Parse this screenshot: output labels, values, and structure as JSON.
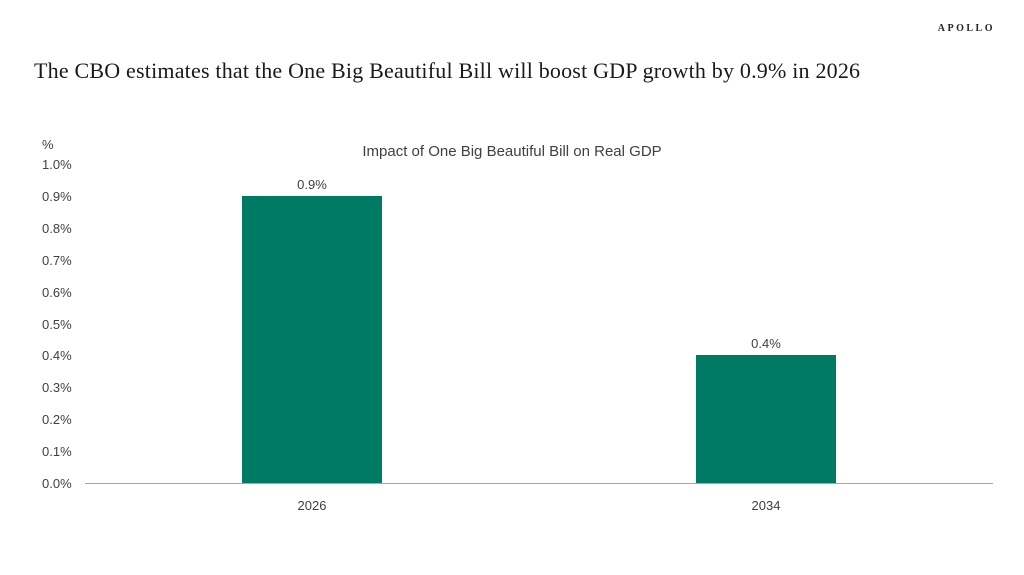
{
  "brand": {
    "logo_text": "APOLLO"
  },
  "headline": "The CBO estimates that the One Big Beautiful Bill will boost GDP growth by 0.9% in 2026",
  "chart_data": {
    "type": "bar",
    "title": "Impact of One Big Beautiful Bill on Real GDP",
    "unit_label": "%",
    "xlabel": "",
    "ylabel": "%",
    "categories": [
      "2026",
      "2034"
    ],
    "values": [
      0.9,
      0.4
    ],
    "data_labels": [
      "0.9%",
      "0.4%"
    ],
    "ylim": [
      0.0,
      1.0
    ],
    "ytick_step": 0.1,
    "ytick_labels": [
      "1.0%",
      "0.9%",
      "0.8%",
      "0.7%",
      "0.6%",
      "0.5%",
      "0.4%",
      "0.3%",
      "0.2%",
      "0.1%",
      "0.0%"
    ],
    "grid": false,
    "legend": false,
    "bar_color": "#007B63",
    "axis_line_color": "#a6a6a6",
    "text_color": "#404040"
  }
}
